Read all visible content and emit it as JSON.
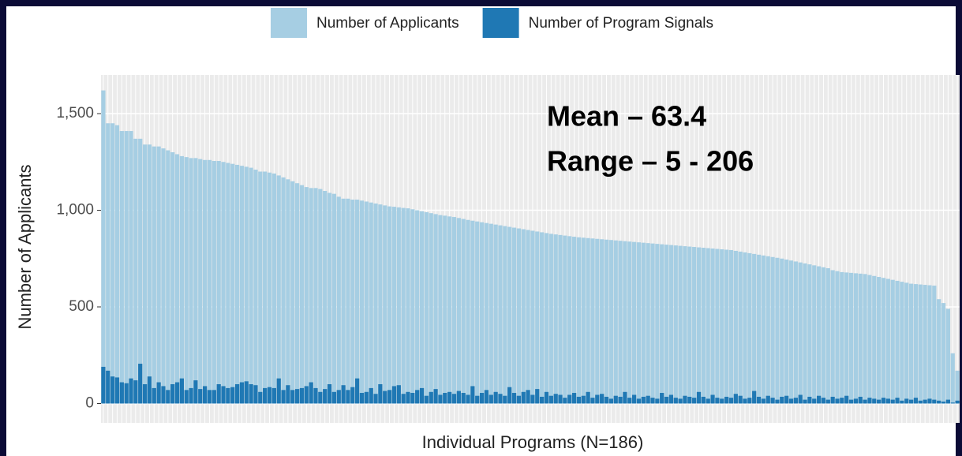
{
  "chart_data": {
    "type": "bar",
    "overlay": true,
    "xlabel": "Individual Programs (N=186)",
    "ylabel": "Number of Applicants",
    "annotations": [
      "Mean – 63.4",
      "Range – 5 - 206"
    ],
    "ylim": [
      -100,
      1700
    ],
    "yticks": [
      0,
      500,
      {
        "value": 1000,
        "label": "1,000"
      },
      {
        "value": 1500,
        "label": "1,500"
      }
    ],
    "grid": true,
    "legend": "top",
    "series": [
      {
        "name": "Number of Applicants",
        "color": "#a6cee3",
        "values": [
          1620,
          1450,
          1450,
          1440,
          1410,
          1410,
          1410,
          1370,
          1370,
          1340,
          1340,
          1330,
          1330,
          1320,
          1310,
          1300,
          1290,
          1280,
          1275,
          1270,
          1270,
          1265,
          1260,
          1260,
          1255,
          1255,
          1250,
          1245,
          1240,
          1235,
          1230,
          1225,
          1220,
          1210,
          1200,
          1200,
          1195,
          1190,
          1180,
          1170,
          1160,
          1150,
          1140,
          1130,
          1120,
          1115,
          1115,
          1110,
          1100,
          1090,
          1085,
          1070,
          1060,
          1060,
          1055,
          1055,
          1050,
          1045,
          1040,
          1035,
          1030,
          1025,
          1020,
          1018,
          1015,
          1012,
          1010,
          1005,
          1000,
          995,
          990,
          985,
          980,
          975,
          972,
          968,
          965,
          960,
          955,
          950,
          946,
          942,
          938,
          934,
          930,
          926,
          922,
          918,
          914,
          910,
          906,
          902,
          898,
          894,
          890,
          886,
          882,
          878,
          875,
          872,
          869,
          866,
          863,
          860,
          858,
          856,
          854,
          852,
          850,
          848,
          846,
          844,
          842,
          840,
          838,
          836,
          834,
          832,
          830,
          828,
          826,
          824,
          822,
          820,
          818,
          816,
          814,
          812,
          810,
          808,
          806,
          804,
          802,
          800,
          798,
          796,
          794,
          790,
          786,
          782,
          778,
          774,
          770,
          766,
          762,
          758,
          754,
          750,
          745,
          740,
          735,
          730,
          725,
          720,
          715,
          710,
          705,
          700,
          690,
          685,
          680,
          678,
          676,
          674,
          672,
          670,
          665,
          660,
          655,
          650,
          645,
          640,
          635,
          630,
          625,
          620,
          618,
          616,
          614,
          612,
          610,
          540,
          520,
          490,
          260,
          170
        ]
      },
      {
        "name": "Number of Program Signals",
        "color": "#1f78b4",
        "values": [
          190,
          170,
          140,
          135,
          110,
          105,
          130,
          120,
          206,
          100,
          140,
          80,
          110,
          90,
          70,
          100,
          110,
          130,
          70,
          80,
          120,
          75,
          90,
          70,
          70,
          100,
          90,
          80,
          85,
          100,
          110,
          115,
          100,
          95,
          60,
          80,
          85,
          80,
          130,
          70,
          95,
          70,
          75,
          80,
          90,
          110,
          80,
          60,
          75,
          100,
          60,
          70,
          95,
          70,
          85,
          130,
          55,
          60,
          80,
          50,
          100,
          65,
          70,
          90,
          95,
          50,
          60,
          55,
          70,
          80,
          40,
          60,
          75,
          45,
          55,
          60,
          50,
          65,
          55,
          45,
          90,
          40,
          55,
          70,
          45,
          60,
          50,
          40,
          85,
          55,
          40,
          60,
          70,
          45,
          75,
          35,
          60,
          40,
          50,
          45,
          30,
          45,
          55,
          35,
          40,
          60,
          30,
          45,
          50,
          35,
          25,
          40,
          35,
          60,
          30,
          45,
          25,
          35,
          40,
          30,
          25,
          55,
          35,
          45,
          30,
          25,
          40,
          35,
          30,
          60,
          35,
          25,
          45,
          30,
          25,
          35,
          30,
          50,
          40,
          25,
          30,
          65,
          35,
          25,
          40,
          30,
          20,
          35,
          40,
          25,
          30,
          45,
          20,
          35,
          25,
          40,
          30,
          20,
          35,
          25,
          30,
          40,
          20,
          25,
          35,
          20,
          30,
          25,
          20,
          30,
          25,
          20,
          30,
          15,
          25,
          20,
          30,
          15,
          20,
          25,
          20,
          15,
          10,
          20,
          5,
          15
        ]
      }
    ]
  }
}
